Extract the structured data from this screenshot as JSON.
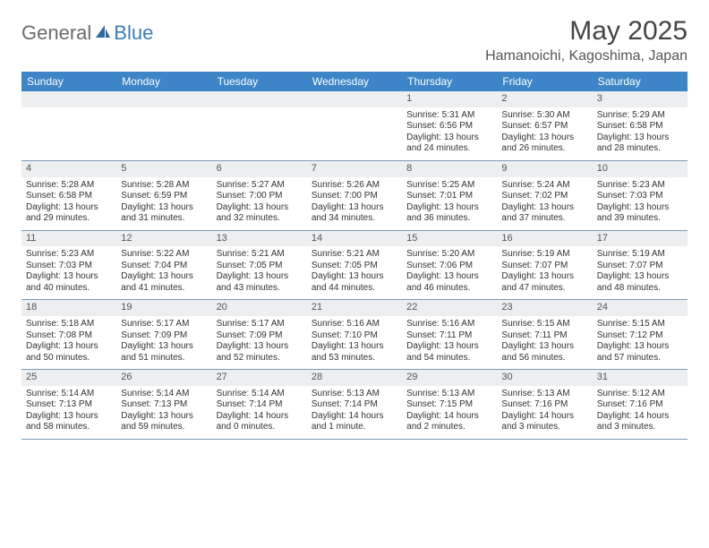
{
  "brand": {
    "general": "General",
    "blue": "Blue"
  },
  "title": "May 2025",
  "location": "Hamanoichi, Kagoshima, Japan",
  "colors": {
    "header_bg": "#3d85c6",
    "daynum_bg": "#eceef0",
    "week_border": "#7d9bb6",
    "text": "#333333",
    "title": "#444444"
  },
  "dow": [
    "Sunday",
    "Monday",
    "Tuesday",
    "Wednesday",
    "Thursday",
    "Friday",
    "Saturday"
  ],
  "weeks": [
    [
      null,
      null,
      null,
      null,
      {
        "n": "1",
        "sr": "Sunrise: 5:31 AM",
        "ss": "Sunset: 6:56 PM",
        "dl": "Daylight: 13 hours and 24 minutes."
      },
      {
        "n": "2",
        "sr": "Sunrise: 5:30 AM",
        "ss": "Sunset: 6:57 PM",
        "dl": "Daylight: 13 hours and 26 minutes."
      },
      {
        "n": "3",
        "sr": "Sunrise: 5:29 AM",
        "ss": "Sunset: 6:58 PM",
        "dl": "Daylight: 13 hours and 28 minutes."
      }
    ],
    [
      {
        "n": "4",
        "sr": "Sunrise: 5:28 AM",
        "ss": "Sunset: 6:58 PM",
        "dl": "Daylight: 13 hours and 29 minutes."
      },
      {
        "n": "5",
        "sr": "Sunrise: 5:28 AM",
        "ss": "Sunset: 6:59 PM",
        "dl": "Daylight: 13 hours and 31 minutes."
      },
      {
        "n": "6",
        "sr": "Sunrise: 5:27 AM",
        "ss": "Sunset: 7:00 PM",
        "dl": "Daylight: 13 hours and 32 minutes."
      },
      {
        "n": "7",
        "sr": "Sunrise: 5:26 AM",
        "ss": "Sunset: 7:00 PM",
        "dl": "Daylight: 13 hours and 34 minutes."
      },
      {
        "n": "8",
        "sr": "Sunrise: 5:25 AM",
        "ss": "Sunset: 7:01 PM",
        "dl": "Daylight: 13 hours and 36 minutes."
      },
      {
        "n": "9",
        "sr": "Sunrise: 5:24 AM",
        "ss": "Sunset: 7:02 PM",
        "dl": "Daylight: 13 hours and 37 minutes."
      },
      {
        "n": "10",
        "sr": "Sunrise: 5:23 AM",
        "ss": "Sunset: 7:03 PM",
        "dl": "Daylight: 13 hours and 39 minutes."
      }
    ],
    [
      {
        "n": "11",
        "sr": "Sunrise: 5:23 AM",
        "ss": "Sunset: 7:03 PM",
        "dl": "Daylight: 13 hours and 40 minutes."
      },
      {
        "n": "12",
        "sr": "Sunrise: 5:22 AM",
        "ss": "Sunset: 7:04 PM",
        "dl": "Daylight: 13 hours and 41 minutes."
      },
      {
        "n": "13",
        "sr": "Sunrise: 5:21 AM",
        "ss": "Sunset: 7:05 PM",
        "dl": "Daylight: 13 hours and 43 minutes."
      },
      {
        "n": "14",
        "sr": "Sunrise: 5:21 AM",
        "ss": "Sunset: 7:05 PM",
        "dl": "Daylight: 13 hours and 44 minutes."
      },
      {
        "n": "15",
        "sr": "Sunrise: 5:20 AM",
        "ss": "Sunset: 7:06 PM",
        "dl": "Daylight: 13 hours and 46 minutes."
      },
      {
        "n": "16",
        "sr": "Sunrise: 5:19 AM",
        "ss": "Sunset: 7:07 PM",
        "dl": "Daylight: 13 hours and 47 minutes."
      },
      {
        "n": "17",
        "sr": "Sunrise: 5:19 AM",
        "ss": "Sunset: 7:07 PM",
        "dl": "Daylight: 13 hours and 48 minutes."
      }
    ],
    [
      {
        "n": "18",
        "sr": "Sunrise: 5:18 AM",
        "ss": "Sunset: 7:08 PM",
        "dl": "Daylight: 13 hours and 50 minutes."
      },
      {
        "n": "19",
        "sr": "Sunrise: 5:17 AM",
        "ss": "Sunset: 7:09 PM",
        "dl": "Daylight: 13 hours and 51 minutes."
      },
      {
        "n": "20",
        "sr": "Sunrise: 5:17 AM",
        "ss": "Sunset: 7:09 PM",
        "dl": "Daylight: 13 hours and 52 minutes."
      },
      {
        "n": "21",
        "sr": "Sunrise: 5:16 AM",
        "ss": "Sunset: 7:10 PM",
        "dl": "Daylight: 13 hours and 53 minutes."
      },
      {
        "n": "22",
        "sr": "Sunrise: 5:16 AM",
        "ss": "Sunset: 7:11 PM",
        "dl": "Daylight: 13 hours and 54 minutes."
      },
      {
        "n": "23",
        "sr": "Sunrise: 5:15 AM",
        "ss": "Sunset: 7:11 PM",
        "dl": "Daylight: 13 hours and 56 minutes."
      },
      {
        "n": "24",
        "sr": "Sunrise: 5:15 AM",
        "ss": "Sunset: 7:12 PM",
        "dl": "Daylight: 13 hours and 57 minutes."
      }
    ],
    [
      {
        "n": "25",
        "sr": "Sunrise: 5:14 AM",
        "ss": "Sunset: 7:13 PM",
        "dl": "Daylight: 13 hours and 58 minutes."
      },
      {
        "n": "26",
        "sr": "Sunrise: 5:14 AM",
        "ss": "Sunset: 7:13 PM",
        "dl": "Daylight: 13 hours and 59 minutes."
      },
      {
        "n": "27",
        "sr": "Sunrise: 5:14 AM",
        "ss": "Sunset: 7:14 PM",
        "dl": "Daylight: 14 hours and 0 minutes."
      },
      {
        "n": "28",
        "sr": "Sunrise: 5:13 AM",
        "ss": "Sunset: 7:14 PM",
        "dl": "Daylight: 14 hours and 1 minute."
      },
      {
        "n": "29",
        "sr": "Sunrise: 5:13 AM",
        "ss": "Sunset: 7:15 PM",
        "dl": "Daylight: 14 hours and 2 minutes."
      },
      {
        "n": "30",
        "sr": "Sunrise: 5:13 AM",
        "ss": "Sunset: 7:16 PM",
        "dl": "Daylight: 14 hours and 3 minutes."
      },
      {
        "n": "31",
        "sr": "Sunrise: 5:12 AM",
        "ss": "Sunset: 7:16 PM",
        "dl": "Daylight: 14 hours and 3 minutes."
      }
    ]
  ]
}
